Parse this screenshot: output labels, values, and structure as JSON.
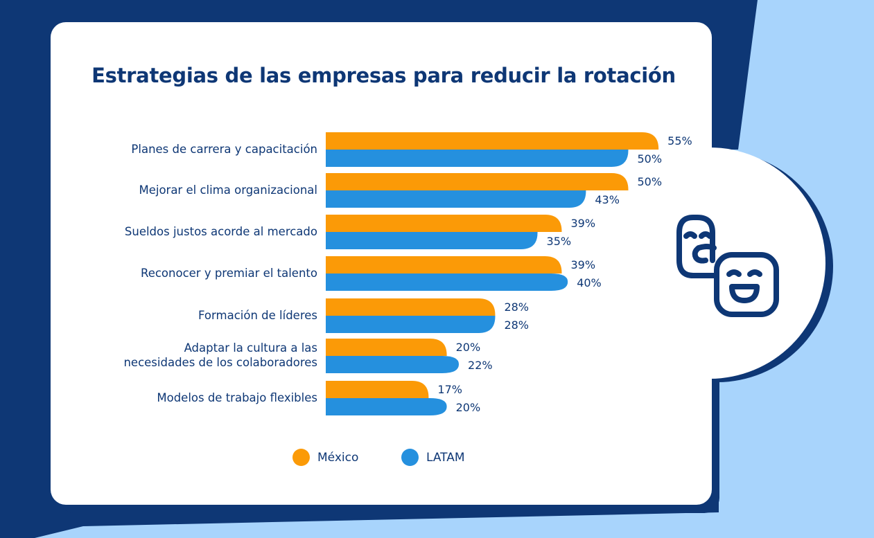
{
  "colors": {
    "mexico": "#fb9a07",
    "latam": "#2590de",
    "navy": "#0e3775",
    "light_blue": "#a8d4fc",
    "card": "#ffffff"
  },
  "icon": "comedy-tragedy-faces-icon",
  "chart_data": {
    "type": "bar",
    "orientation": "horizontal",
    "title": "Estrategias de las empresas para reducir la rotación",
    "xlabel": "",
    "ylabel": "",
    "xlim": [
      0,
      55
    ],
    "grid": false,
    "legend_position": "bottom",
    "categories": [
      "Planes de carrera y capacitación",
      "Mejorar el clima organizacional",
      "Sueldos justos acorde al mercado",
      "Reconocer y premiar el talento",
      "Formación de líderes",
      "Adaptar la cultura a las\nnecesidades de los colaboradores",
      "Modelos de trabajo flexibles"
    ],
    "series": [
      {
        "name": "México",
        "values": [
          55,
          50,
          39,
          39,
          28,
          20,
          17
        ],
        "labels": [
          "55%",
          "50%",
          "39%",
          "39%",
          "28%",
          "20%",
          "17%"
        ]
      },
      {
        "name": "LATAM",
        "values": [
          50,
          43,
          35,
          40,
          28,
          22,
          20
        ],
        "labels": [
          "50%",
          "43%",
          "35%",
          "40%",
          "28%",
          "22%",
          "20%"
        ]
      }
    ]
  }
}
